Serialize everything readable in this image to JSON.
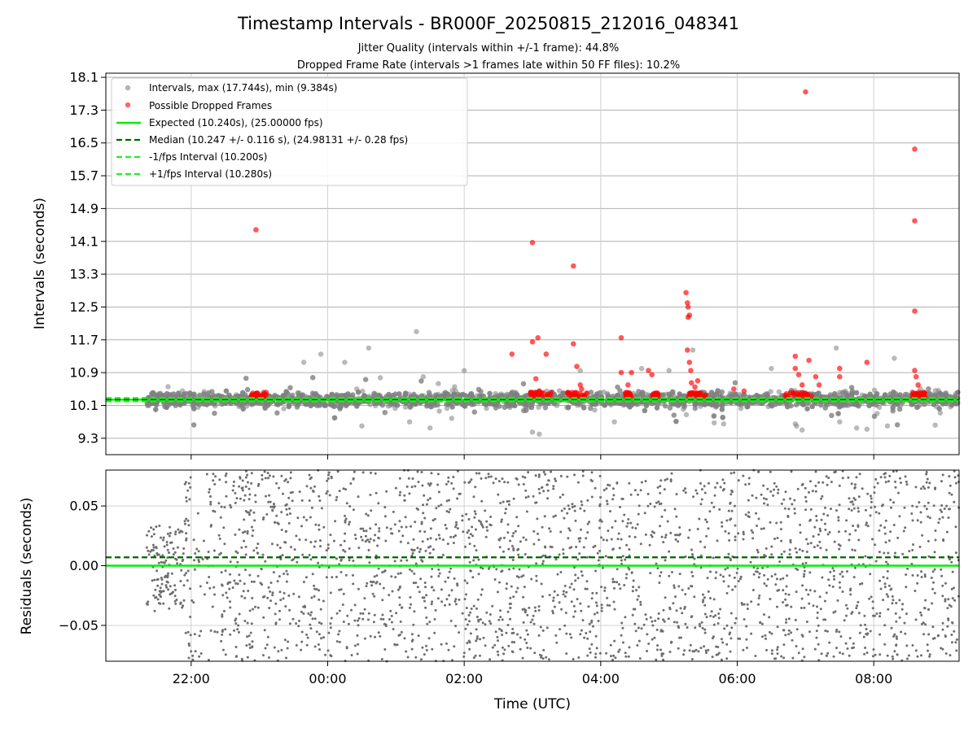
{
  "title": "Timestamp Intervals - BR000F_20250815_212016_048341",
  "subtitle_1": "Jitter Quality (intervals within +/-1 frame): 44.8%",
  "subtitle_2": "Dropped Frame Rate (intervals >1 frames late within 50 FF files): 10.2%",
  "colors": {
    "intervals": "#808080",
    "dropped": "#ff0000",
    "expected": "#00ee00",
    "median": "#006400",
    "band": "#22ee22",
    "residuals": "#6e6e6e"
  },
  "chart_data": [
    {
      "type": "scatter",
      "ylabel": "Intervals (seconds)",
      "ylim": [
        8.9,
        18.2
      ],
      "yticks": [
        "9.3",
        "10.1",
        "10.9",
        "11.7",
        "12.5",
        "13.3",
        "14.1",
        "14.9",
        "15.7",
        "16.5",
        "17.3",
        "18.1"
      ],
      "xlim_hours": [
        20.75,
        33.25
      ],
      "grid": true,
      "legend_position": "upper-left",
      "legend": [
        "Intervals, max (17.744s), min (9.384s)",
        "Possible Dropped Frames",
        "Expected (10.240s), (25.00000 fps)",
        "Median (10.247 +/- 0.116 s), (24.98131 +/- 0.28 fps)",
        "-1/fps Interval (10.200s)",
        "+1/fps Interval (10.280s)"
      ],
      "expected": 10.24,
      "median": 10.247,
      "minus_interval": 10.2,
      "plus_interval": 10.28,
      "series": [
        {
          "name": "Intervals",
          "x_range_hours": [
            21.35,
            33.25
          ],
          "min": 9.384,
          "max": 17.744,
          "center": 10.247,
          "note": "dense scatter of approx. 4000 intervals"
        },
        {
          "name": "Possible Dropped Frames",
          "points": [
            [
              22.95,
              14.38
            ],
            [
              23.0,
              10.35
            ],
            [
              22.9,
              10.4
            ],
            [
              27.0,
              14.07
            ],
            [
              27.0,
              11.65
            ],
            [
              27.08,
              11.75
            ],
            [
              27.05,
              10.75
            ],
            [
              27.2,
              11.35
            ],
            [
              26.7,
              11.35
            ],
            [
              27.1,
              10.45
            ],
            [
              27.6,
              13.5
            ],
            [
              27.6,
              11.6
            ],
            [
              27.65,
              11.05
            ],
            [
              27.7,
              10.6
            ],
            [
              27.72,
              10.5
            ],
            [
              28.3,
              11.75
            ],
            [
              28.3,
              10.9
            ],
            [
              28.45,
              10.9
            ],
            [
              28.4,
              10.6
            ],
            [
              28.4,
              10.3
            ],
            [
              28.7,
              10.95
            ],
            [
              28.75,
              10.85
            ],
            [
              28.8,
              10.3
            ],
            [
              29.25,
              12.85
            ],
            [
              29.27,
              12.6
            ],
            [
              29.28,
              12.5
            ],
            [
              29.3,
              12.3
            ],
            [
              29.28,
              12.25
            ],
            [
              29.27,
              11.45
            ],
            [
              29.3,
              11.15
            ],
            [
              29.32,
              10.95
            ],
            [
              29.33,
              10.65
            ],
            [
              29.38,
              10.55
            ],
            [
              29.42,
              10.7
            ],
            [
              30.85,
              11.3
            ],
            [
              30.85,
              11.0
            ],
            [
              30.9,
              10.85
            ],
            [
              31.05,
              11.2
            ],
            [
              30.95,
              10.6
            ],
            [
              31.15,
              10.8
            ],
            [
              31.2,
              10.6
            ],
            [
              31.0,
              10.4
            ],
            [
              31.5,
              11.0
            ],
            [
              31.5,
              10.8
            ],
            [
              31.9,
              11.15
            ],
            [
              29.95,
              10.5
            ],
            [
              30.1,
              10.45
            ],
            [
              32.6,
              16.35
            ],
            [
              32.6,
              14.6
            ],
            [
              32.6,
              12.4
            ],
            [
              32.6,
              10.95
            ],
            [
              32.62,
              10.8
            ],
            [
              32.65,
              10.6
            ],
            [
              32.68,
              10.35
            ],
            [
              32.75,
              10.3
            ]
          ]
        }
      ]
    },
    {
      "type": "scatter",
      "xlabel": "Time (UTC)",
      "ylabel": "Residuals (seconds)",
      "ylim": [
        -0.08,
        0.08
      ],
      "yticks": [
        "−0.05",
        "0.00",
        "0.05"
      ],
      "xticks": [
        "22:00",
        "00:00",
        "02:00",
        "04:00",
        "06:00",
        "08:00"
      ],
      "xlim_hours": [
        20.75,
        33.25
      ],
      "grid": true,
      "expected": 0.0,
      "median_offset": 0.007,
      "series": [
        {
          "name": "Residuals",
          "x_range_hours": [
            21.35,
            33.25
          ],
          "note": "approx. 2500 residual points spread across the axis range"
        }
      ]
    }
  ]
}
